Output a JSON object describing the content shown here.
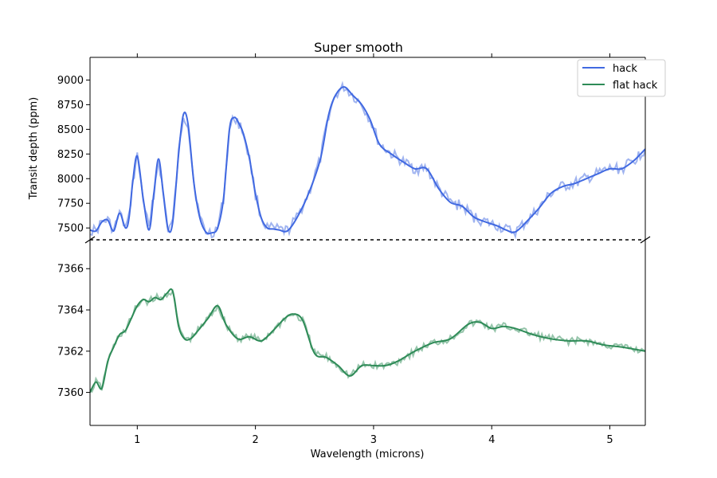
{
  "chart_data": {
    "type": "line",
    "title": "Super smooth",
    "xlabel": "Wavelength (microns)",
    "ylabel": "Transit depth (ppm)",
    "xlim": [
      0.6,
      5.3
    ],
    "x_ticks": [
      1,
      2,
      3,
      4,
      5
    ],
    "layout": "broken-y-axis (two stacked panels sharing x axis)",
    "grid": false,
    "legend_position": "top-right",
    "legend": [
      "hack",
      "flat hack"
    ],
    "panels": [
      {
        "name": "upper",
        "ylim": [
          7380,
          9230
        ],
        "y_ticks": [
          7500,
          7750,
          8000,
          8250,
          8500,
          8750,
          9000
        ],
        "series": [
          {
            "name": "hack",
            "color": "#4169e1",
            "raw_alpha": 0.5,
            "x": [
              0.6,
              0.65,
              0.7,
              0.75,
              0.8,
              0.85,
              0.9,
              0.93,
              0.96,
              1.0,
              1.05,
              1.1,
              1.14,
              1.18,
              1.22,
              1.26,
              1.3,
              1.35,
              1.39,
              1.43,
              1.48,
              1.53,
              1.58,
              1.63,
              1.68,
              1.73,
              1.78,
              1.82,
              1.86,
              1.9,
              1.95,
              2.0,
              2.05,
              2.1,
              2.15,
              2.2,
              2.27,
              2.35,
              2.45,
              2.55,
              2.62,
              2.68,
              2.75,
              2.82,
              2.9,
              2.97,
              3.05,
              3.15,
              3.25,
              3.35,
              3.45,
              3.55,
              3.65,
              3.75,
              3.85,
              3.95,
              4.05,
              4.12,
              4.2,
              4.3,
              4.4,
              4.5,
              4.6,
              4.7,
              4.8,
              4.9,
              5.0,
              5.1,
              5.2,
              5.3
            ],
            "values": [
              7480,
              7470,
              7560,
              7580,
              7470,
              7650,
              7500,
              7600,
              7950,
              8230,
              7800,
              7480,
              7850,
              8200,
              7850,
              7490,
              7560,
              8250,
              8650,
              8550,
              7950,
              7600,
              7460,
              7450,
              7500,
              7800,
              8500,
              8620,
              8560,
              8450,
              8200,
              7850,
              7600,
              7500,
              7490,
              7480,
              7470,
              7600,
              7850,
              8200,
              8650,
              8850,
              8930,
              8850,
              8750,
              8600,
              8350,
              8250,
              8170,
              8100,
              8100,
              7900,
              7760,
              7720,
              7610,
              7560,
              7520,
              7480,
              7460,
              7570,
              7700,
              7850,
              7920,
              7950,
              8000,
              8050,
              8100,
              8100,
              8180,
              8300
            ]
          }
        ]
      },
      {
        "name": "lower",
        "ylim": [
          7358.4,
          7367.4
        ],
        "y_ticks": [
          7360,
          7362,
          7364,
          7366
        ],
        "series": [
          {
            "name": "flat hack",
            "color": "#2e8b57",
            "raw_alpha": 0.5,
            "x": [
              0.6,
              0.65,
              0.7,
              0.75,
              0.8,
              0.85,
              0.9,
              0.95,
              1.0,
              1.05,
              1.1,
              1.15,
              1.2,
              1.25,
              1.3,
              1.35,
              1.4,
              1.45,
              1.5,
              1.6,
              1.68,
              1.75,
              1.85,
              1.95,
              2.05,
              2.15,
              2.25,
              2.32,
              2.4,
              2.5,
              2.6,
              2.7,
              2.8,
              2.9,
              3.0,
              3.1,
              3.2,
              3.35,
              3.5,
              3.65,
              3.8,
              3.9,
              4.0,
              4.1,
              4.2,
              4.35,
              4.5,
              4.65,
              4.8,
              4.95,
              5.1,
              5.3
            ],
            "values": [
              7360.0,
              7360.5,
              7360.2,
              7361.5,
              7362.2,
              7362.8,
              7363.0,
              7363.6,
              7364.2,
              7364.5,
              7364.4,
              7364.6,
              7364.5,
              7364.8,
              7364.9,
              7363.2,
              7362.6,
              7362.6,
              7362.9,
              7363.6,
              7364.2,
              7363.3,
              7362.6,
              7362.7,
              7362.5,
              7363.0,
              7363.6,
              7363.8,
              7363.5,
              7361.9,
              7361.7,
              7361.3,
              7360.8,
              7361.3,
              7361.3,
              7361.3,
              7361.5,
              7362.0,
              7362.4,
              7362.6,
              7363.3,
              7363.4,
              7363.1,
              7363.2,
              7363.1,
              7362.8,
              7362.6,
              7362.5,
              7362.5,
              7362.3,
              7362.2,
              7362.0
            ]
          }
        ]
      }
    ]
  }
}
